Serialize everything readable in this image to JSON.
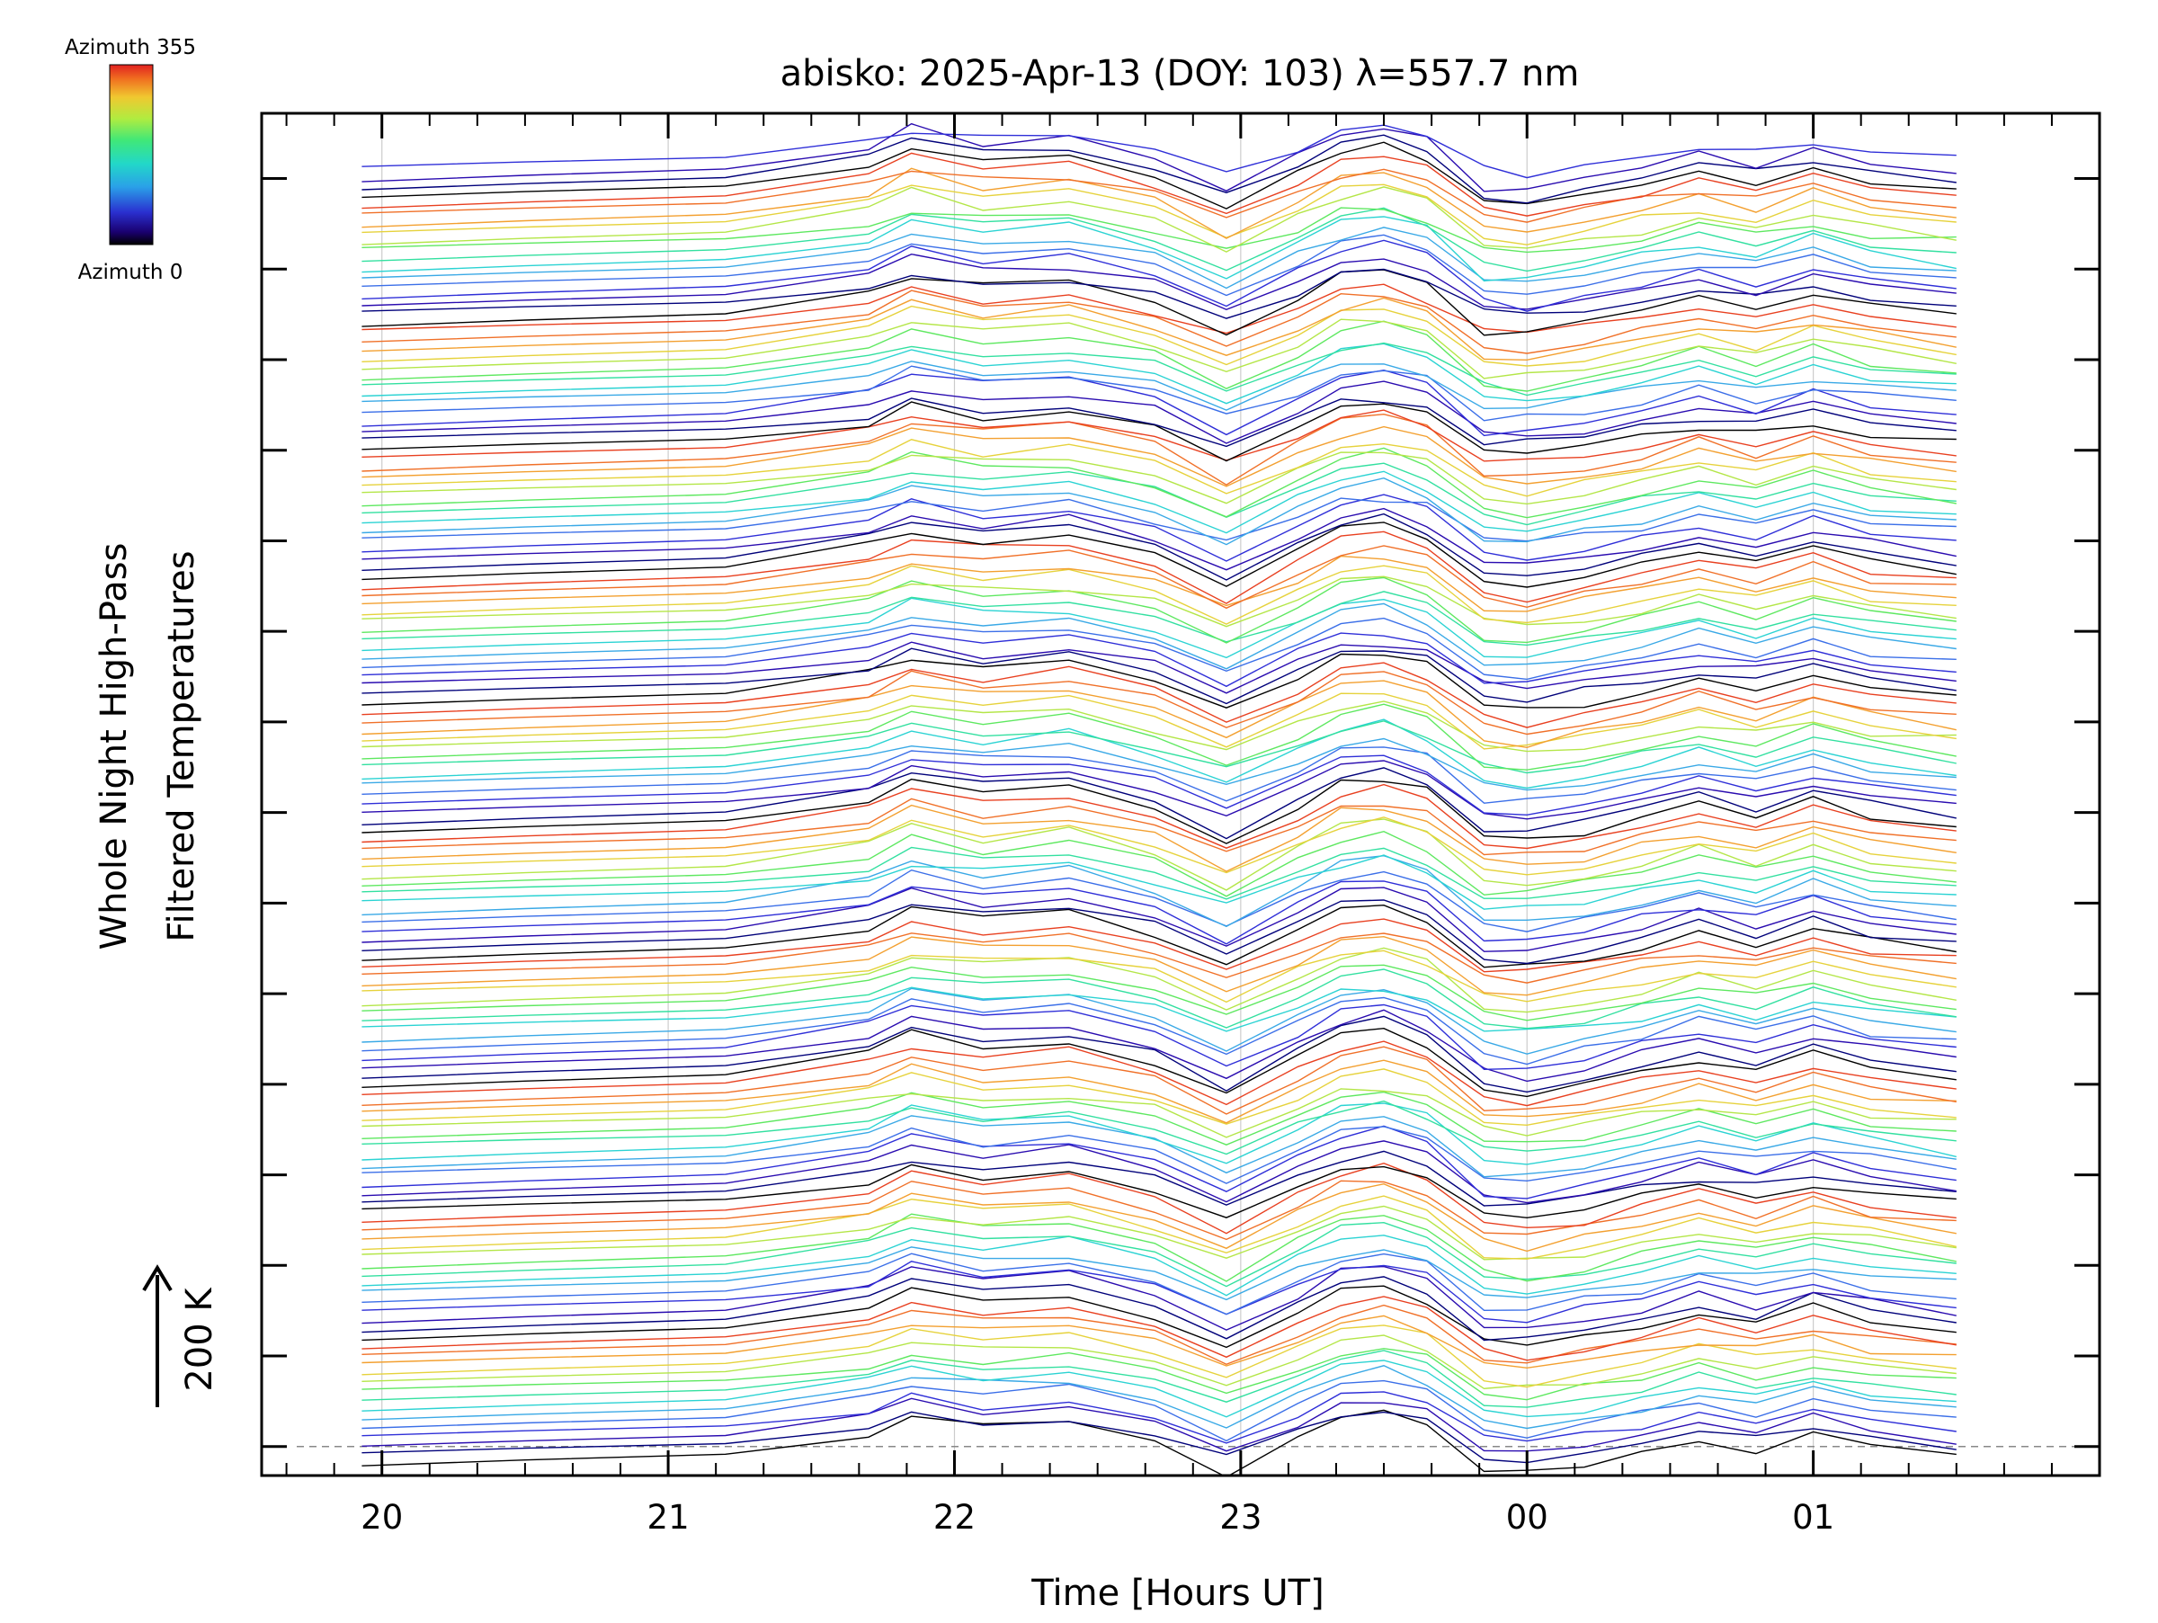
{
  "chart_data": {
    "type": "line",
    "title": "abisko: 2025-Apr-13 (DOY: 103) λ=557.7 nm",
    "xlabel": "Time [Hours UT]",
    "ylabel_line1": "Whole Night High-Pass",
    "ylabel_line2": "Filtered Temperatures",
    "scale_label": "200 K",
    "colorbar": {
      "top_label": "Azimuth 355",
      "bottom_label": "Azimuth 0"
    },
    "x_ticks": [
      "20",
      "21",
      "22",
      "23",
      "00",
      "01"
    ],
    "x_tick_values": [
      20,
      21,
      22,
      23,
      24,
      25
    ],
    "xlim": [
      19.58,
      26.0
    ],
    "n_traces": 144,
    "trace_offset_K": 25,
    "ylim_K": [
      -80,
      3680
    ],
    "y_tick_spacing_K": 250,
    "grid": true,
    "reference_line_K": 0,
    "time": [
      19.93,
      20.5,
      21.2,
      21.7,
      21.85,
      22.1,
      22.4,
      22.7,
      22.95,
      23.2,
      23.35,
      23.5,
      23.65,
      23.85,
      24.0,
      24.2,
      24.4,
      24.6,
      24.8,
      25.0,
      25.2,
      25.5
    ],
    "common_signal_K": [
      -50,
      -35,
      -20,
      30,
      75,
      45,
      60,
      10,
      -70,
      15,
      70,
      85,
      50,
      -60,
      -70,
      -45,
      -15,
      20,
      -10,
      30,
      -5,
      -30
    ],
    "trace_colors_by_azimuth_steps": [
      "#000000",
      "#00007a",
      "#2a0cb0",
      "#2f2fd8",
      "#3b6fe8",
      "#3aa9e6",
      "#2bd3d3",
      "#33e0a0",
      "#5ee860",
      "#b4e648",
      "#e6d23c",
      "#f3a030",
      "#f07028",
      "#e84020"
    ]
  }
}
